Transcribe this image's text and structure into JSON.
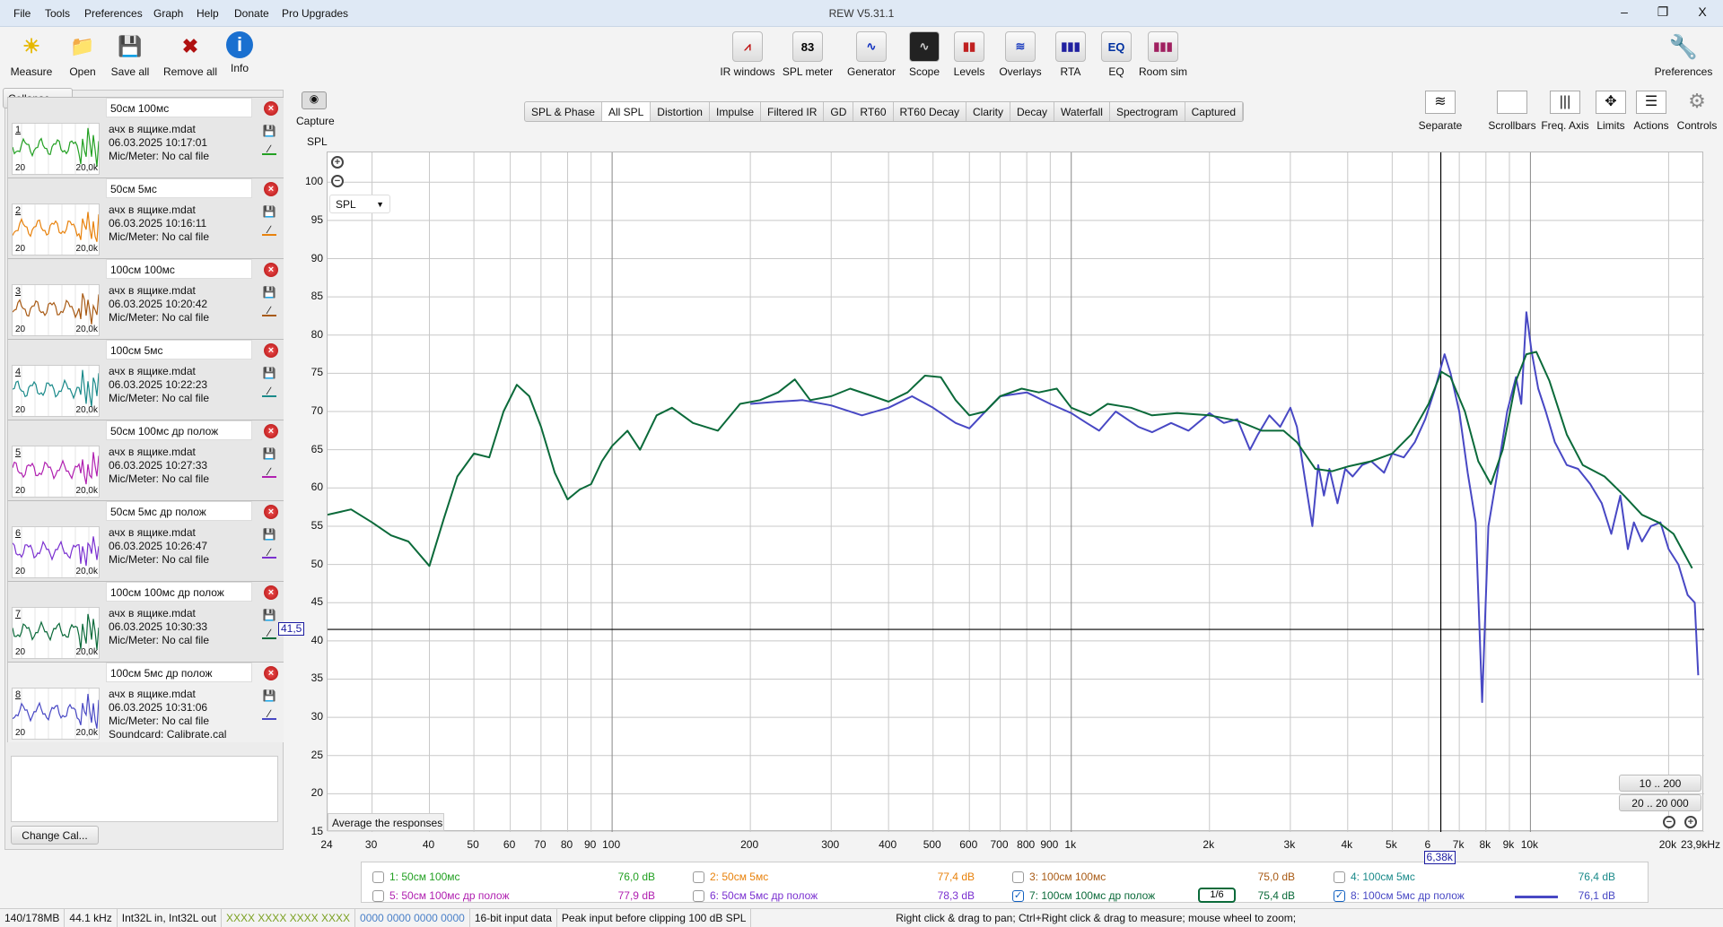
{
  "window": {
    "title": "REW V5.31.1",
    "minimize": "–",
    "restore": "❐",
    "close": "X"
  },
  "menu": [
    "File",
    "Tools",
    "Preferences",
    "Graph",
    "Help",
    "Donate",
    "Pro Upgrades"
  ],
  "toolbar_left": [
    {
      "label": "Measure",
      "icon": "measure-icon"
    },
    {
      "label": "Open",
      "icon": "folder-icon"
    },
    {
      "label": "Save all",
      "icon": "save-all-icon"
    },
    {
      "label": "Remove all",
      "icon": "remove-all-icon"
    },
    {
      "label": "Info",
      "icon": "info-icon"
    }
  ],
  "toolbar_center": [
    {
      "label": "IR windows",
      "glyph": "⩘"
    },
    {
      "label": "SPL meter",
      "glyph": "83"
    },
    {
      "label": "Generator",
      "glyph": "∿"
    },
    {
      "label": "Scope",
      "glyph": "∿"
    },
    {
      "label": "Levels",
      "glyph": "▮▮"
    },
    {
      "label": "Overlays",
      "glyph": "≋"
    },
    {
      "label": "RTA",
      "glyph": "▮▮▮"
    },
    {
      "label": "EQ",
      "glyph": "EQ"
    },
    {
      "label": "Room sim",
      "glyph": "▮▮▮"
    }
  ],
  "preferences": "Preferences",
  "collapse": "Collapse «",
  "capture": "Capture",
  "measurements": [
    {
      "num": "1",
      "name": "50см 100мс",
      "file": "ачх в ящике.mdat",
      "date": "06.03.2025 10:17:01",
      "mic": "Mic/Meter: No cal file",
      "color": "#22a022"
    },
    {
      "num": "2",
      "name": "50см 5мс",
      "file": "ачх в ящике.mdat",
      "date": "06.03.2025 10:16:11",
      "mic": "Mic/Meter: No cal file",
      "color": "#e8820c"
    },
    {
      "num": "3",
      "name": "100см 100мс",
      "file": "ачх в ящике.mdat",
      "date": "06.03.2025 10:20:42",
      "mic": "Mic/Meter: No cal file",
      "color": "#a85a14"
    },
    {
      "num": "4",
      "name": "100см 5мс",
      "file": "ачх в ящике.mdat",
      "date": "06.03.2025 10:22:23",
      "mic": "Mic/Meter: No cal file",
      "color": "#1a8a8a"
    },
    {
      "num": "5",
      "name": "50см 100мс др полож",
      "file": "ачх в ящике.mdat",
      "date": "06.03.2025 10:27:33",
      "mic": "Mic/Meter: No cal file",
      "color": "#b020b0"
    },
    {
      "num": "6",
      "name": "50см 5мс др полож",
      "file": "ачх в ящике.mdat",
      "date": "06.03.2025 10:26:47",
      "mic": "Mic/Meter: No cal file",
      "color": "#7a30d0"
    },
    {
      "num": "7",
      "name": "100см 100мс др полож",
      "file": "ачх в ящике.mdat",
      "date": "06.03.2025 10:30:33",
      "mic": "Mic/Meter: No cal file",
      "color": "#0b6a3a"
    },
    {
      "num": "8",
      "name": "100см 5мс др полож",
      "file": "ачх в ящике.mdat",
      "date": "06.03.2025 10:31:06",
      "mic": "Mic/Meter: No cal file",
      "soundcard": "Soundcard: Calibrate.cal",
      "color": "#4848c4"
    }
  ],
  "thumb_axis": {
    "left": "20",
    "right": "20,0k"
  },
  "change_cal": "Change Cal...",
  "tabs": [
    "SPL & Phase",
    "All SPL",
    "Distortion",
    "Impulse",
    "Filtered IR",
    "GD",
    "RT60",
    "RT60 Decay",
    "Clarity",
    "Decay",
    "Waterfall",
    "Spectrogram",
    "Captured"
  ],
  "active_tab": "All SPL",
  "graph_tools": [
    "Separate",
    "Scrollbars",
    "Freq. Axis",
    "Limits",
    "Actions",
    "Controls"
  ],
  "graph": {
    "y_label": "SPL",
    "dropdown": "SPL",
    "average_button": "Average the responses",
    "range_buttons": [
      "10 .. 200",
      "20 .. 20 000"
    ],
    "cursor_y": "41,5",
    "cursor_x": "6,38k"
  },
  "chart_data": {
    "type": "line",
    "ylabel": "SPL",
    "xscale": "log",
    "xlim": [
      24,
      23900
    ],
    "ylim": [
      15,
      103.9
    ],
    "grid": true,
    "yticks": [
      15,
      20,
      25,
      30,
      35,
      40,
      45,
      50,
      55,
      60,
      65,
      70,
      75,
      80,
      85,
      90,
      95,
      100
    ],
    "xticks": [
      {
        "v": 24,
        "l": "24"
      },
      {
        "v": 30,
        "l": "30"
      },
      {
        "v": 40,
        "l": "40"
      },
      {
        "v": 50,
        "l": "50"
      },
      {
        "v": 60,
        "l": "60"
      },
      {
        "v": 70,
        "l": "70"
      },
      {
        "v": 80,
        "l": "80"
      },
      {
        "v": 90,
        "l": "90"
      },
      {
        "v": 100,
        "l": "100"
      },
      {
        "v": 200,
        "l": "200"
      },
      {
        "v": 300,
        "l": "300"
      },
      {
        "v": 400,
        "l": "400"
      },
      {
        "v": 500,
        "l": "500"
      },
      {
        "v": 600,
        "l": "600"
      },
      {
        "v": 700,
        "l": "700"
      },
      {
        "v": 800,
        "l": "800"
      },
      {
        "v": 900,
        "l": "900"
      },
      {
        "v": 1000,
        "l": "1k"
      },
      {
        "v": 2000,
        "l": "2k"
      },
      {
        "v": 3000,
        "l": "3k"
      },
      {
        "v": 4000,
        "l": "4k"
      },
      {
        "v": 5000,
        "l": "5k"
      },
      {
        "v": 6000,
        "l": "6"
      },
      {
        "v": 7000,
        "l": "7k"
      },
      {
        "v": 8000,
        "l": "8k"
      },
      {
        "v": 9000,
        "l": "9k"
      },
      {
        "v": 10000,
        "l": "10k"
      },
      {
        "v": 20000,
        "l": "20k"
      },
      {
        "v": 23900,
        "l": "23,9kHz"
      }
    ],
    "cursor": {
      "x": 6380,
      "y": 41.5
    },
    "series": [
      {
        "name": "7: 100см 100мс др полож",
        "color": "#0b6a3a",
        "points": [
          [
            24,
            56.5
          ],
          [
            27,
            57.2
          ],
          [
            30,
            55.5
          ],
          [
            33,
            53.8
          ],
          [
            36,
            53
          ],
          [
            40,
            49.8
          ],
          [
            43,
            56
          ],
          [
            46,
            61.5
          ],
          [
            50,
            64.5
          ],
          [
            54,
            64
          ],
          [
            58,
            70
          ],
          [
            62,
            73.5
          ],
          [
            66,
            72
          ],
          [
            70,
            68
          ],
          [
            75,
            62
          ],
          [
            80,
            58.5
          ],
          [
            85,
            59.8
          ],
          [
            90,
            60.5
          ],
          [
            95,
            63.5
          ],
          [
            100,
            65.5
          ],
          [
            108,
            67.5
          ],
          [
            115,
            65
          ],
          [
            125,
            69.5
          ],
          [
            135,
            70.5
          ],
          [
            150,
            68.5
          ],
          [
            170,
            67.5
          ],
          [
            190,
            71
          ],
          [
            210,
            71.5
          ],
          [
            230,
            72.5
          ],
          [
            250,
            74.2
          ],
          [
            270,
            71.5
          ],
          [
            300,
            72
          ],
          [
            330,
            73
          ],
          [
            370,
            72
          ],
          [
            400,
            71.3
          ],
          [
            440,
            72.5
          ],
          [
            480,
            74.7
          ],
          [
            520,
            74.5
          ],
          [
            560,
            71.5
          ],
          [
            600,
            69.5
          ],
          [
            650,
            70
          ],
          [
            700,
            72
          ],
          [
            780,
            73
          ],
          [
            850,
            72.5
          ],
          [
            930,
            73
          ],
          [
            1000,
            70.5
          ],
          [
            1100,
            69.5
          ],
          [
            1200,
            71
          ],
          [
            1350,
            70.5
          ],
          [
            1500,
            69.5
          ],
          [
            1700,
            69.8
          ],
          [
            2000,
            69.5
          ],
          [
            2300,
            68.8
          ],
          [
            2600,
            67.5
          ],
          [
            2900,
            67.5
          ],
          [
            3100,
            66
          ],
          [
            3400,
            62.5
          ],
          [
            3700,
            62.2
          ],
          [
            4000,
            62.8
          ],
          [
            4500,
            63.5
          ],
          [
            5000,
            64.5
          ],
          [
            5500,
            67
          ],
          [
            6000,
            71
          ],
          [
            6400,
            75.2
          ],
          [
            6700,
            74.5
          ],
          [
            7200,
            70
          ],
          [
            7700,
            63.5
          ],
          [
            8200,
            60.5
          ],
          [
            8700,
            65
          ],
          [
            9300,
            74
          ],
          [
            9800,
            77.5
          ],
          [
            10300,
            77.8
          ],
          [
            11000,
            74
          ],
          [
            12000,
            67
          ],
          [
            13000,
            63
          ],
          [
            14500,
            61.5
          ],
          [
            16000,
            59
          ],
          [
            17500,
            56.5
          ],
          [
            19000,
            55.5
          ],
          [
            20500,
            54
          ],
          [
            22500,
            49.5
          ]
        ]
      },
      {
        "name": "8: 100см 5мс др полож",
        "color": "#4848c4",
        "points": [
          [
            200,
            71
          ],
          [
            230,
            71.3
          ],
          [
            260,
            71.5
          ],
          [
            300,
            70.8
          ],
          [
            350,
            69.5
          ],
          [
            400,
            70.5
          ],
          [
            450,
            72
          ],
          [
            500,
            70.5
          ],
          [
            560,
            68.5
          ],
          [
            600,
            67.8
          ],
          [
            650,
            70
          ],
          [
            700,
            72
          ],
          [
            800,
            72.5
          ],
          [
            900,
            71
          ],
          [
            1000,
            69.8
          ],
          [
            1080,
            68.5
          ],
          [
            1150,
            67.5
          ],
          [
            1250,
            70
          ],
          [
            1400,
            68
          ],
          [
            1500,
            67.3
          ],
          [
            1650,
            68.5
          ],
          [
            1800,
            67.5
          ],
          [
            2000,
            69.8
          ],
          [
            2150,
            68.5
          ],
          [
            2300,
            69
          ],
          [
            2450,
            65
          ],
          [
            2550,
            67
          ],
          [
            2700,
            69.5
          ],
          [
            2850,
            68
          ],
          [
            3000,
            70.5
          ],
          [
            3100,
            68
          ],
          [
            3250,
            60
          ],
          [
            3350,
            55
          ],
          [
            3450,
            63
          ],
          [
            3550,
            59
          ],
          [
            3650,
            62.5
          ],
          [
            3800,
            58
          ],
          [
            3950,
            62.5
          ],
          [
            4100,
            61.5
          ],
          [
            4300,
            63
          ],
          [
            4500,
            63.5
          ],
          [
            4800,
            62
          ],
          [
            5000,
            64.5
          ],
          [
            5300,
            64
          ],
          [
            5600,
            66
          ],
          [
            5900,
            69
          ],
          [
            6200,
            73
          ],
          [
            6500,
            77.5
          ],
          [
            6700,
            75
          ],
          [
            7000,
            70
          ],
          [
            7300,
            62
          ],
          [
            7600,
            55.5
          ],
          [
            7850,
            32
          ],
          [
            8100,
            55
          ],
          [
            8500,
            62.5
          ],
          [
            8900,
            70
          ],
          [
            9300,
            74.5
          ],
          [
            9550,
            71
          ],
          [
            9800,
            83
          ],
          [
            10050,
            78
          ],
          [
            10400,
            73
          ],
          [
            10800,
            70
          ],
          [
            11300,
            66
          ],
          [
            12000,
            63
          ],
          [
            12700,
            62.5
          ],
          [
            13500,
            60.5
          ],
          [
            14300,
            58
          ],
          [
            15000,
            54
          ],
          [
            15700,
            59
          ],
          [
            16300,
            52
          ],
          [
            16800,
            55.5
          ],
          [
            17500,
            53
          ],
          [
            18300,
            55
          ],
          [
            19200,
            55.5
          ],
          [
            20000,
            52
          ],
          [
            21000,
            50
          ],
          [
            22000,
            46
          ],
          [
            22800,
            45
          ],
          [
            23200,
            35.5
          ]
        ]
      }
    ]
  },
  "legend": [
    {
      "label": "1: 50см 100мс",
      "value": "76,0 dB",
      "checked": false,
      "color": "#22a022"
    },
    {
      "label": "2: 50см 5мс",
      "value": "77,4 dB",
      "checked": false,
      "color": "#e8820c"
    },
    {
      "label": "3: 100см 100мс",
      "value": "75,0 dB",
      "checked": false,
      "color": "#a85a14"
    },
    {
      "label": "4: 100см 5мс",
      "value": "76,4 dB",
      "checked": false,
      "color": "#1a8a8a"
    },
    {
      "label": "5: 50см 100мс др полож",
      "value": "77,9 dB",
      "checked": false,
      "color": "#b020b0"
    },
    {
      "label": "6: 50см 5мс др полож",
      "value": "78,3 dB",
      "checked": false,
      "color": "#7a30d0"
    },
    {
      "label": "7: 100см 100мс др полож",
      "value": "75,4 dB",
      "checked": true,
      "color": "#0b6a3a",
      "smoothing": "1/6"
    },
    {
      "label": "8: 100см 5мс др полож",
      "value": "76,1 dB",
      "checked": true,
      "color": "#4848c4"
    }
  ],
  "status": [
    "140/178MB",
    "44.1 kHz",
    "Int32L in, Int32L out",
    "XXXX XXXX  XXXX XXXX",
    "0000 0000  0000 0000",
    "16-bit input data",
    "Peak input before clipping 100 dB SPL",
    "Right click & drag to pan; Ctrl+Right click & drag to measure; mouse wheel to zoom;"
  ]
}
